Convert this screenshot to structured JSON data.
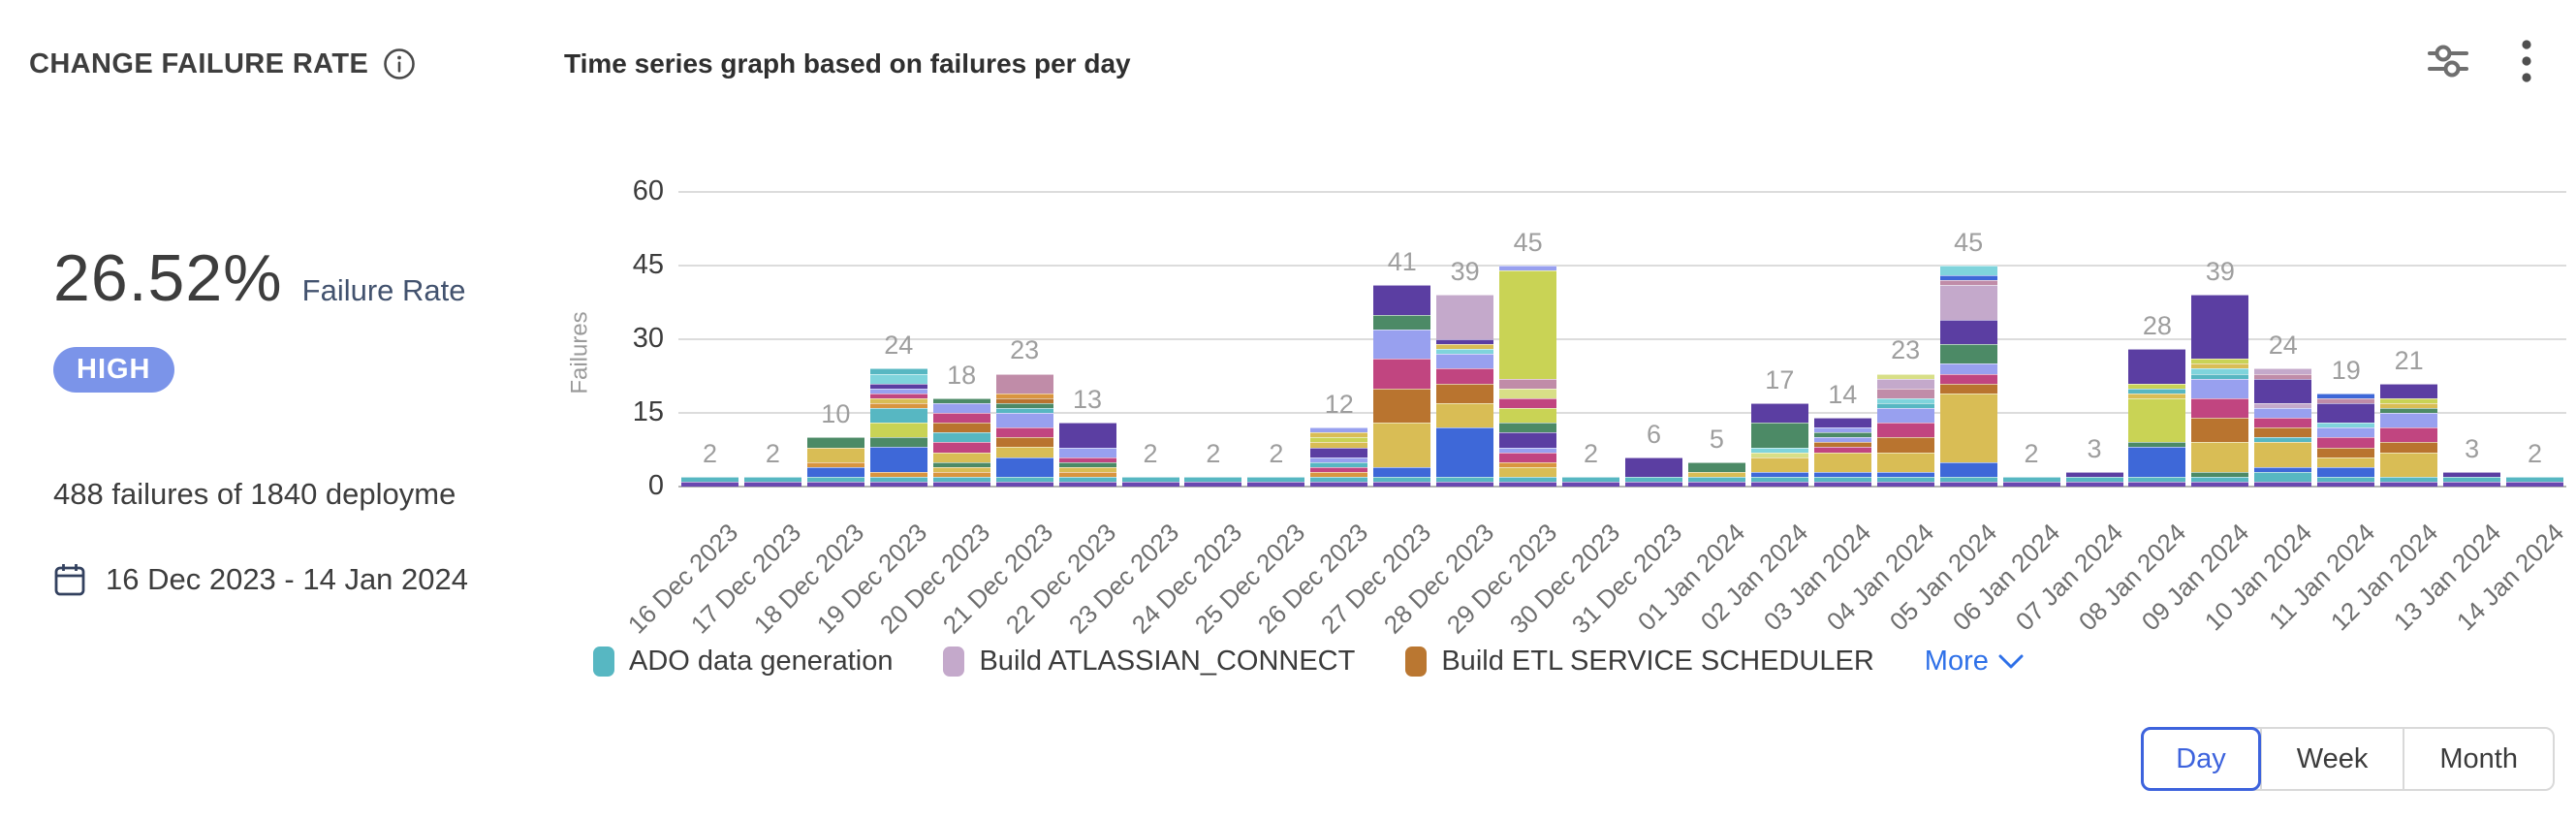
{
  "header": {
    "title": "CHANGE FAILURE RATE",
    "subtitle": "Time series graph based on failures per day",
    "info_icon": "info-icon",
    "action_icons": [
      "sliders-icon",
      "kebab-menu-icon"
    ]
  },
  "stats": {
    "rate": "26.52%",
    "rate_label": "Failure Rate",
    "severity": "HIGH",
    "severity_color": "#7b94e9",
    "summary": "488 failures of 1840 deployme",
    "date_range": "16 Dec 2023 - 14 Jan 2024"
  },
  "chart_data": {
    "type": "bar",
    "stacked": true,
    "title": "Time series graph based on failures per day",
    "xlabel": "",
    "ylabel": "Failures",
    "ylim": [
      0,
      60
    ],
    "yticks": [
      0,
      15,
      30,
      45,
      60
    ],
    "grid": "horizontal",
    "value_labels": true,
    "categories": [
      "16 Dec 2023",
      "17 Dec 2023",
      "18 Dec 2023",
      "19 Dec 2023",
      "20 Dec 2023",
      "21 Dec 2023",
      "22 Dec 2023",
      "23 Dec 2023",
      "24 Dec 2023",
      "25 Dec 2023",
      "26 Dec 2023",
      "27 Dec 2023",
      "28 Dec 2023",
      "29 Dec 2023",
      "30 Dec 2023",
      "31 Dec 2023",
      "01 Jan 2024",
      "02 Jan 2024",
      "03 Jan 2024",
      "04 Jan 2024",
      "05 Jan 2024",
      "06 Jan 2024",
      "07 Jan 2024",
      "08 Jan 2024",
      "09 Jan 2024",
      "10 Jan 2024",
      "11 Jan 2024",
      "12 Jan 2024",
      "13 Jan 2024",
      "14 Jan 2024"
    ],
    "values": [
      2,
      2,
      10,
      24,
      18,
      23,
      13,
      2,
      2,
      2,
      12,
      41,
      39,
      45,
      2,
      6,
      5,
      17,
      14,
      23,
      45,
      2,
      3,
      28,
      39,
      24,
      19,
      21,
      3,
      2
    ],
    "palette": {
      "p": "#6a48b0",
      "t": "#57b7c2",
      "b": "#3e68d8",
      "y": "#d9bd55",
      "o": "#d9953f",
      "br": "#b9742f",
      "m": "#c14580",
      "pw": "#98a0ef",
      "g": "#4c8a66",
      "dp": "#5b3ea2",
      "l": "#c9d355",
      "lg": "#d8df87",
      "mv": "#c4a9cb",
      "rs": "#c08ca8",
      "c": "#7fd4dc"
    },
    "stacks": [
      [
        [
          "p",
          1
        ],
        [
          "t",
          1
        ]
      ],
      [
        [
          "p",
          1
        ],
        [
          "t",
          1
        ]
      ],
      [
        [
          "p",
          1
        ],
        [
          "t",
          1
        ],
        [
          "b",
          2
        ],
        [
          "o",
          1
        ],
        [
          "y",
          3
        ],
        [
          "g",
          2
        ]
      ],
      [
        [
          "p",
          1
        ],
        [
          "t",
          1
        ],
        [
          "o",
          1
        ],
        [
          "b",
          5
        ],
        [
          "g",
          2
        ],
        [
          "l",
          3
        ],
        [
          "t",
          3
        ],
        [
          "o",
          1
        ],
        [
          "y",
          1
        ],
        [
          "m",
          1
        ],
        [
          "pw",
          1
        ],
        [
          "dp",
          1
        ],
        [
          "c",
          2
        ],
        [
          "t",
          1
        ]
      ],
      [
        [
          "p",
          1
        ],
        [
          "t",
          1
        ],
        [
          "o",
          1
        ],
        [
          "y",
          1
        ],
        [
          "g",
          1
        ],
        [
          "y",
          2
        ],
        [
          "m",
          2
        ],
        [
          "t",
          2
        ],
        [
          "br",
          2
        ],
        [
          "m",
          2
        ],
        [
          "pw",
          2
        ],
        [
          "g",
          1
        ]
      ],
      [
        [
          "p",
          1
        ],
        [
          "t",
          1
        ],
        [
          "b",
          4
        ],
        [
          "y",
          2
        ],
        [
          "br",
          2
        ],
        [
          "m",
          2
        ],
        [
          "pw",
          3
        ],
        [
          "t",
          1
        ],
        [
          "g",
          1
        ],
        [
          "br",
          1
        ],
        [
          "o",
          1
        ],
        [
          "rs",
          4
        ]
      ],
      [
        [
          "p",
          1
        ],
        [
          "t",
          1
        ],
        [
          "o",
          1
        ],
        [
          "y",
          1
        ],
        [
          "g",
          1
        ],
        [
          "m",
          1
        ],
        [
          "pw",
          2
        ],
        [
          "dp",
          5
        ]
      ],
      [
        [
          "p",
          1
        ],
        [
          "t",
          1
        ]
      ],
      [
        [
          "p",
          1
        ],
        [
          "t",
          1
        ]
      ],
      [
        [
          "p",
          1
        ],
        [
          "t",
          1
        ]
      ],
      [
        [
          "p",
          1
        ],
        [
          "t",
          1
        ],
        [
          "o",
          1
        ],
        [
          "m",
          1
        ],
        [
          "t",
          1
        ],
        [
          "pw",
          1
        ],
        [
          "dp",
          2
        ],
        [
          "y",
          1
        ],
        [
          "l",
          1
        ],
        [
          "y",
          1
        ],
        [
          "pw",
          1
        ]
      ],
      [
        [
          "p",
          1
        ],
        [
          "t",
          1
        ],
        [
          "b",
          2
        ],
        [
          "y",
          9
        ],
        [
          "br",
          7
        ],
        [
          "m",
          6
        ],
        [
          "pw",
          6
        ],
        [
          "g",
          3
        ],
        [
          "dp",
          6
        ]
      ],
      [
        [
          "p",
          1
        ],
        [
          "t",
          1
        ],
        [
          "b",
          10
        ],
        [
          "y",
          5
        ],
        [
          "br",
          4
        ],
        [
          "m",
          3
        ],
        [
          "pw",
          3
        ],
        [
          "c",
          1
        ],
        [
          "y",
          1
        ],
        [
          "dp",
          1
        ],
        [
          "mv",
          9
        ]
      ],
      [
        [
          "p",
          1
        ],
        [
          "t",
          1
        ],
        [
          "y",
          2
        ],
        [
          "o",
          1
        ],
        [
          "m",
          2
        ],
        [
          "pw",
          1
        ],
        [
          "dp",
          3
        ],
        [
          "g",
          2
        ],
        [
          "l",
          3
        ],
        [
          "m",
          2
        ],
        [
          "lg",
          2
        ],
        [
          "rs",
          2
        ],
        [
          "l",
          22
        ],
        [
          "pw",
          1
        ]
      ],
      [
        [
          "p",
          1
        ],
        [
          "t",
          1
        ]
      ],
      [
        [
          "p",
          1
        ],
        [
          "t",
          1
        ],
        [
          "dp",
          4
        ]
      ],
      [
        [
          "p",
          1
        ],
        [
          "t",
          1
        ],
        [
          "y",
          1
        ],
        [
          "g",
          2
        ]
      ],
      [
        [
          "p",
          1
        ],
        [
          "t",
          1
        ],
        [
          "b",
          1
        ],
        [
          "y",
          3
        ],
        [
          "lg",
          1
        ],
        [
          "c",
          1
        ],
        [
          "g",
          5
        ],
        [
          "dp",
          4
        ]
      ],
      [
        [
          "p",
          1
        ],
        [
          "t",
          1
        ],
        [
          "b",
          1
        ],
        [
          "y",
          4
        ],
        [
          "m",
          1
        ],
        [
          "br",
          1
        ],
        [
          "pw",
          1
        ],
        [
          "g",
          1
        ],
        [
          "pw",
          1
        ],
        [
          "dp",
          2
        ]
      ],
      [
        [
          "p",
          1
        ],
        [
          "t",
          1
        ],
        [
          "b",
          1
        ],
        [
          "y",
          4
        ],
        [
          "br",
          3
        ],
        [
          "m",
          3
        ],
        [
          "pw",
          3
        ],
        [
          "t",
          1
        ],
        [
          "c",
          1
        ],
        [
          "rs",
          2
        ],
        [
          "mv",
          2
        ],
        [
          "lg",
          1
        ]
      ],
      [
        [
          "p",
          1
        ],
        [
          "t",
          1
        ],
        [
          "b",
          3
        ],
        [
          "y",
          14
        ],
        [
          "br",
          2
        ],
        [
          "m",
          2
        ],
        [
          "pw",
          2
        ],
        [
          "g",
          4
        ],
        [
          "dp",
          5
        ],
        [
          "mv",
          7
        ],
        [
          "rs",
          1
        ],
        [
          "b",
          1
        ],
        [
          "c",
          2
        ]
      ],
      [
        [
          "p",
          1
        ],
        [
          "t",
          1
        ]
      ],
      [
        [
          "p",
          1
        ],
        [
          "t",
          1
        ],
        [
          "dp",
          1
        ]
      ],
      [
        [
          "p",
          1
        ],
        [
          "t",
          1
        ],
        [
          "b",
          6
        ],
        [
          "g",
          1
        ],
        [
          "l",
          9
        ],
        [
          "y",
          1
        ],
        [
          "t",
          1
        ],
        [
          "l",
          1
        ],
        [
          "dp",
          7
        ]
      ],
      [
        [
          "p",
          1
        ],
        [
          "t",
          1
        ],
        [
          "g",
          1
        ],
        [
          "y",
          6
        ],
        [
          "br",
          5
        ],
        [
          "m",
          4
        ],
        [
          "pw",
          4
        ],
        [
          "t",
          1
        ],
        [
          "c",
          1
        ],
        [
          "y",
          1
        ],
        [
          "l",
          1
        ],
        [
          "dp",
          13
        ]
      ],
      [
        [
          "p",
          1
        ],
        [
          "t",
          2
        ],
        [
          "b",
          1
        ],
        [
          "y",
          5
        ],
        [
          "t",
          1
        ],
        [
          "br",
          2
        ],
        [
          "m",
          2
        ],
        [
          "pw",
          2
        ],
        [
          "mv",
          1
        ],
        [
          "dp",
          5
        ],
        [
          "rs",
          1
        ],
        [
          "mv",
          1
        ]
      ],
      [
        [
          "p",
          1
        ],
        [
          "t",
          1
        ],
        [
          "b",
          2
        ],
        [
          "y",
          2
        ],
        [
          "br",
          2
        ],
        [
          "m",
          2
        ],
        [
          "pw",
          2
        ],
        [
          "c",
          1
        ],
        [
          "dp",
          4
        ],
        [
          "rs",
          1
        ],
        [
          "b",
          1
        ]
      ],
      [
        [
          "p",
          1
        ],
        [
          "t",
          1
        ],
        [
          "y",
          5
        ],
        [
          "br",
          2
        ],
        [
          "m",
          3
        ],
        [
          "pw",
          3
        ],
        [
          "g",
          1
        ],
        [
          "y",
          1
        ],
        [
          "l",
          1
        ],
        [
          "dp",
          3
        ]
      ],
      [
        [
          "p",
          1
        ],
        [
          "t",
          1
        ],
        [
          "dp",
          1
        ]
      ],
      [
        [
          "p",
          1
        ],
        [
          "t",
          1
        ]
      ]
    ],
    "legend": {
      "position": "bottom",
      "items": [
        {
          "label": "ADO data generation",
          "color": "#57b7c2"
        },
        {
          "label": "Build ATLASSIAN_CONNECT",
          "color": "#c4a9cb"
        },
        {
          "label": "Build ETL SERVICE SCHEDULER",
          "color": "#ba7731"
        }
      ],
      "more_label": "More"
    }
  },
  "controls": {
    "granularity": {
      "options": [
        "Day",
        "Week",
        "Month"
      ],
      "selected": "Day"
    }
  },
  "colors": {
    "accent_blue": "#3d63dd",
    "link_blue": "#2e70e8",
    "badge_blue": "#7b94e9",
    "grid_gray": "#dcdcdc",
    "axis_gray": "#b3b3b3"
  }
}
